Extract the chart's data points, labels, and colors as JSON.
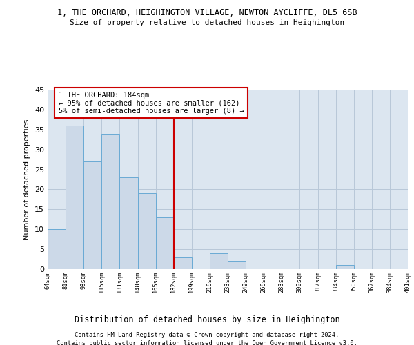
{
  "title": "1, THE ORCHARD, HEIGHINGTON VILLAGE, NEWTON AYCLIFFE, DL5 6SB",
  "subtitle": "Size of property relative to detached houses in Heighington",
  "xlabel": "Distribution of detached houses by size in Heighington",
  "ylabel": "Number of detached properties",
  "bar_values": [
    10,
    36,
    27,
    34,
    23,
    19,
    13,
    3,
    0,
    4,
    2,
    0,
    0,
    0,
    0,
    0,
    1,
    0,
    0,
    0
  ],
  "bin_labels": [
    "64sqm",
    "81sqm",
    "98sqm",
    "115sqm",
    "131sqm",
    "148sqm",
    "165sqm",
    "182sqm",
    "199sqm",
    "216sqm",
    "233sqm",
    "249sqm",
    "266sqm",
    "283sqm",
    "300sqm",
    "317sqm",
    "334sqm",
    "350sqm",
    "367sqm",
    "384sqm",
    "401sqm"
  ],
  "bar_color": "#ccd9e8",
  "bar_edge_color": "#6aaad4",
  "grid_color": "#b8c8d8",
  "bg_color": "#dce6f0",
  "vline_color": "#cc0000",
  "annotation_text": "1 THE ORCHARD: 184sqm\n← 95% of detached houses are smaller (162)\n5% of semi-detached houses are larger (8) →",
  "annotation_box_color": "#cc0000",
  "ylim": [
    0,
    45
  ],
  "yticks": [
    0,
    5,
    10,
    15,
    20,
    25,
    30,
    35,
    40,
    45
  ],
  "footer_line1": "Contains HM Land Registry data © Crown copyright and database right 2024.",
  "footer_line2": "Contains public sector information licensed under the Open Government Licence v3.0."
}
